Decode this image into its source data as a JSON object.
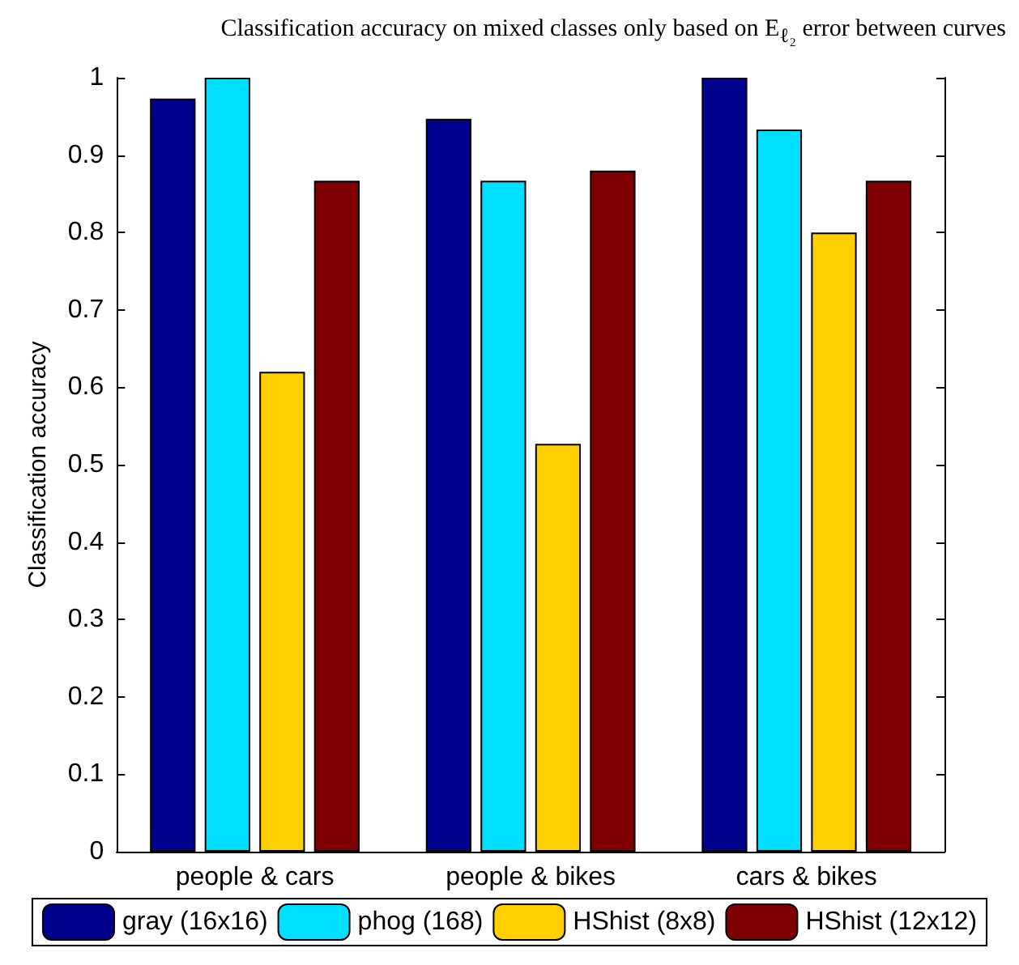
{
  "chart_data": {
    "type": "bar",
    "title": "Classification accuracy on mixed classes only based on E$_{ℓ₂}$ error between curves",
    "ylabel": "Classification accuracy",
    "categories": [
      "people & cars",
      "people & bikes",
      "cars & bikes"
    ],
    "series": [
      {
        "name": "gray (16x16)",
        "color": "#00008f",
        "values": [
          0.973,
          0.947,
          1.0
        ]
      },
      {
        "name": "phog (168)",
        "color": "#00dfff",
        "values": [
          1.0,
          0.867,
          0.933
        ]
      },
      {
        "name": "HShist (8x8)",
        "color": "#ffcf00",
        "values": [
          0.62,
          0.527,
          0.8
        ]
      },
      {
        "name": "HShist (12x12)",
        "color": "#7f0000",
        "values": [
          0.867,
          0.88,
          0.867
        ]
      }
    ],
    "ylim": [
      0,
      1
    ],
    "yticks": [
      0,
      0.1,
      0.2,
      0.3,
      0.4,
      0.5,
      0.6,
      0.7,
      0.8,
      0.9,
      1
    ],
    "grid": false,
    "legend": "bottom"
  }
}
